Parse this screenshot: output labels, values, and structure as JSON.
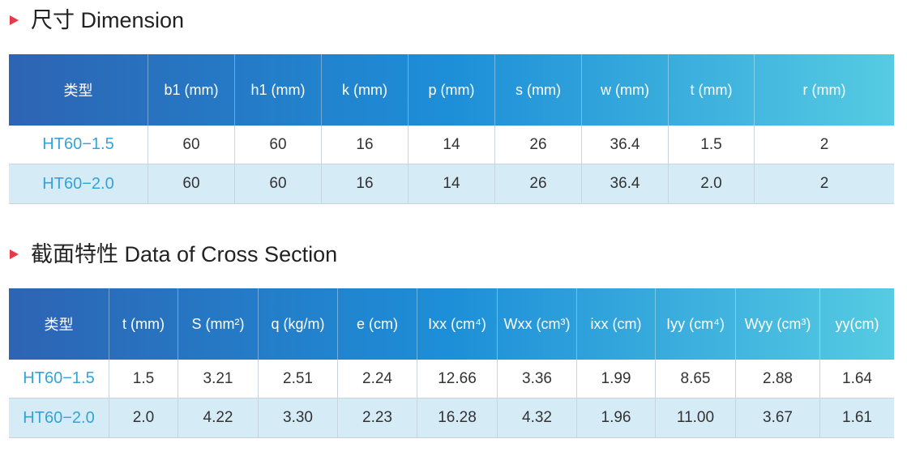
{
  "sections": [
    {
      "title": "尺寸 Dimension",
      "table": {
        "header": [
          "类型",
          "b1 (mm)",
          "h1 (mm)",
          "k (mm)",
          "p (mm)",
          "s (mm)",
          "w (mm)",
          "t (mm)",
          "r (mm)"
        ],
        "rows": [
          [
            "HT60−1.5",
            "60",
            "60",
            "16",
            "14",
            "26",
            "36.4",
            "1.5",
            "2"
          ],
          [
            "HT60−2.0",
            "60",
            "60",
            "16",
            "14",
            "26",
            "36.4",
            "2.0",
            "2"
          ]
        ]
      }
    },
    {
      "title": "截面特性 Data of Cross Section",
      "table": {
        "header": [
          "类型",
          "t (mm)",
          "S (mm²)",
          "q (kg/m)",
          "e (cm)",
          "Ixx (cm⁴)",
          "Wxx (cm³)",
          "ixx (cm)",
          "Iyy (cm⁴)",
          "Wyy (cm³)",
          "yy(cm)"
        ],
        "rows": [
          [
            "HT60−1.5",
            "1.5",
            "3.21",
            "2.51",
            "2.24",
            "12.66",
            "3.36",
            "1.99",
            "8.65",
            "2.88",
            "1.64"
          ],
          [
            "HT60−2.0",
            "2.0",
            "4.22",
            "3.30",
            "2.23",
            "16.28",
            "4.32",
            "1.96",
            "11.00",
            "3.67",
            "1.61"
          ]
        ]
      }
    }
  ]
}
